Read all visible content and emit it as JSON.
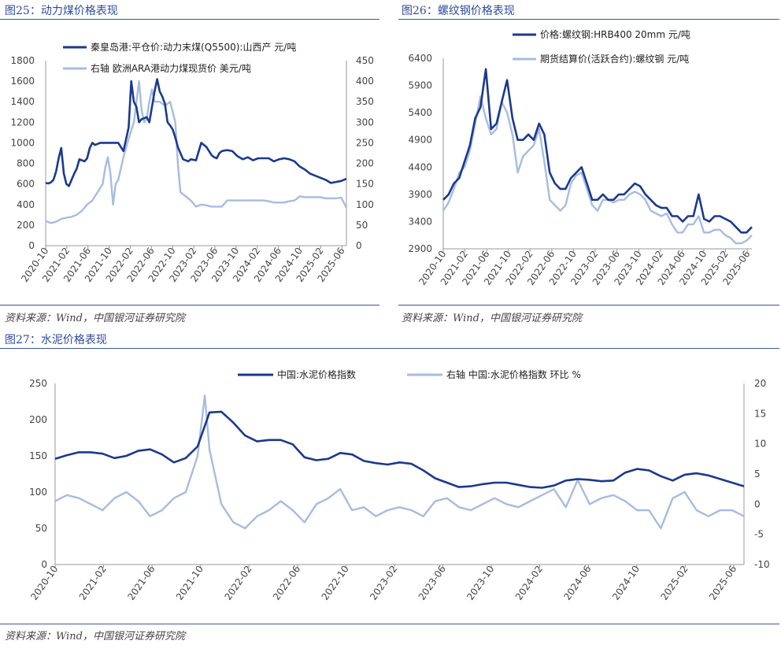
{
  "figures": [
    {
      "id": "fig25",
      "title": "图25：动力煤价格表现",
      "source": "资料来源：Wind，中国银河证券研究院"
    },
    {
      "id": "fig26",
      "title": "图26：螺纹钢价格表现",
      "source": "资料来源：Wind，中国银河证券研究院"
    },
    {
      "id": "fig27",
      "title": "图27：水泥价格表现",
      "source": "资料来源：Wind，中国银河证券研究院"
    }
  ],
  "colors": {
    "dark": "#1b3a8c",
    "light": "#a7bce0",
    "accent": "#2e4a9e"
  },
  "chart_data": [
    {
      "type": "line",
      "title": "图25：动力煤价格表现",
      "x_ticks": [
        "2020-10",
        "2021-02",
        "2021-06",
        "2021-10",
        "2022-02",
        "2022-06",
        "2022-10",
        "2023-02",
        "2023-06",
        "2023-10",
        "2024-02",
        "2024-06",
        "2024-10",
        "2025-02",
        "2025-06"
      ],
      "xlim": [
        0,
        58
      ],
      "ylim_left": [
        0,
        1800
      ],
      "y_ticks_left": [
        "0",
        "200",
        "400",
        "600",
        "800",
        "1000",
        "1200",
        "1400",
        "1600",
        "1800"
      ],
      "ylim_right": [
        0,
        450
      ],
      "y_ticks_right": [
        "0",
        "50",
        "100",
        "150",
        "200",
        "250",
        "300",
        "350",
        "400",
        "450"
      ],
      "legend_position": "top",
      "series": [
        {
          "name": "秦皇岛港:平仓价:动力末煤(Q5500):山西产 元/吨",
          "axis": "left",
          "color": "dark",
          "x": [
            0,
            0.5,
            1,
            1.5,
            2,
            2.5,
            3,
            3.5,
            4,
            4.5,
            5,
            5.5,
            6,
            6.5,
            7,
            7.5,
            8,
            8.5,
            9,
            9.5,
            10,
            10.5,
            11,
            11.5,
            12,
            13,
            14,
            15,
            16,
            16.5,
            17,
            17.5,
            18,
            18.5,
            19,
            19.5,
            20,
            20.5,
            21,
            21.5,
            22,
            22.5,
            23,
            23.5,
            24,
            24.5,
            25,
            25.5,
            26,
            26.5,
            27,
            27.5,
            28,
            29,
            30,
            31,
            32,
            32.5,
            33,
            33.5,
            34,
            35,
            36,
            37,
            38,
            39,
            40,
            41,
            42,
            43,
            44,
            45,
            46,
            47,
            48,
            49,
            50,
            51,
            52,
            53,
            54,
            55,
            56,
            57,
            58
          ],
          "values": [
            610,
            605,
            615,
            640,
            720,
            850,
            950,
            700,
            600,
            580,
            640,
            700,
            750,
            840,
            830,
            820,
            850,
            950,
            1000,
            980,
            990,
            1000,
            1000,
            1000,
            1000,
            1000,
            1000,
            920,
            1150,
            1600,
            1400,
            1350,
            1200,
            1230,
            1240,
            1250,
            1200,
            1350,
            1500,
            1620,
            1500,
            1450,
            1380,
            1200,
            1170,
            1130,
            1050,
            960,
            900,
            840,
            830,
            820,
            840,
            830,
            1000,
            960,
            880,
            860,
            850,
            900,
            920,
            930,
            920,
            870,
            840,
            860,
            830,
            850,
            850,
            850,
            820,
            840,
            850,
            840,
            820,
            770,
            740,
            700,
            680,
            660,
            640,
            610,
            620,
            630,
            650
          ],
          "note": "monthly approximation; peaks ~1600 (2022-03) and ~1620 (2022-09)"
        },
        {
          "name": "右轴 欧洲ARA港动力煤现货价 美元/吨",
          "axis": "right",
          "color": "light",
          "x": [
            0,
            1,
            2,
            3,
            4,
            5,
            6,
            7,
            8,
            9,
            10,
            11,
            11.5,
            12,
            12.5,
            13,
            13.5,
            14,
            15,
            16,
            17,
            17.5,
            18,
            18.5,
            19,
            19.5,
            20,
            20.5,
            21,
            22,
            23,
            24,
            25,
            25.5,
            26,
            27,
            28,
            29,
            30,
            31,
            32,
            33,
            34,
            35,
            36,
            37,
            38,
            39,
            40,
            41,
            42,
            43,
            44,
            45,
            46,
            47,
            48,
            49,
            50,
            51,
            52,
            53,
            54,
            55,
            56,
            57,
            58
          ],
          "values": [
            60,
            55,
            58,
            65,
            68,
            70,
            75,
            85,
            100,
            110,
            130,
            150,
            190,
            215,
            175,
            100,
            150,
            160,
            215,
            260,
            300,
            350,
            400,
            330,
            300,
            310,
            350,
            380,
            350,
            350,
            340,
            350,
            300,
            200,
            130,
            120,
            110,
            95,
            100,
            98,
            95,
            95,
            95,
            110,
            110,
            110,
            110,
            110,
            110,
            110,
            110,
            108,
            105,
            105,
            105,
            108,
            110,
            120,
            118,
            118,
            118,
            118,
            115,
            115,
            115,
            117,
            92
          ],
          "note": "monthly approximation; peak ~410 (2022-03)"
        }
      ]
    },
    {
      "type": "line",
      "title": "图26：螺纹钢价格表现",
      "x_ticks": [
        "2020-10",
        "2021-02",
        "2021-06",
        "2021-10",
        "2022-02",
        "2022-06",
        "2022-10",
        "2023-02",
        "2023-06",
        "2023-10",
        "2024-02",
        "2024-06",
        "2024-10",
        "2025-02",
        "2025-06"
      ],
      "xlim": [
        0,
        58
      ],
      "ylim": [
        2900,
        6400
      ],
      "y_ticks": [
        "2900",
        "3400",
        "3900",
        "4400",
        "4900",
        "5400",
        "5900",
        "6400"
      ],
      "legend_position": "top",
      "series": [
        {
          "name": "价格:螺纹钢:HRB400 20mm 元/吨",
          "color": "dark",
          "x": [
            0,
            1,
            2,
            3,
            4,
            5,
            6,
            7,
            8,
            9,
            10,
            11,
            12,
            13,
            14,
            15,
            16,
            17,
            18,
            19,
            20,
            21,
            22,
            23,
            24,
            25,
            26,
            27,
            28,
            29,
            30,
            31,
            32,
            33,
            34,
            35,
            36,
            37,
            38,
            39,
            40,
            41,
            42,
            43,
            44,
            45,
            46,
            47,
            48,
            49,
            50,
            51,
            52,
            53,
            54,
            55,
            56,
            57,
            58
          ],
          "values": [
            3800,
            3900,
            4100,
            4200,
            4500,
            4800,
            5300,
            5500,
            6200,
            5100,
            5200,
            5600,
            6000,
            5300,
            4900,
            4900,
            5000,
            4900,
            5200,
            5000,
            4300,
            4100,
            4000,
            4000,
            4200,
            4300,
            4400,
            4100,
            3800,
            3800,
            3900,
            3800,
            3800,
            3900,
            3900,
            4000,
            4100,
            4050,
            3900,
            3800,
            3700,
            3650,
            3650,
            3500,
            3500,
            3400,
            3500,
            3500,
            3900,
            3450,
            3400,
            3500,
            3500,
            3450,
            3400,
            3300,
            3200,
            3200,
            3300
          ],
          "note": "monthly approximation"
        },
        {
          "name": "期货结算价(活跃合约):螺纹钢 元/吨",
          "color": "light",
          "x": [
            0,
            1,
            2,
            3,
            4,
            5,
            6,
            7,
            8,
            9,
            10,
            11,
            12,
            13,
            14,
            15,
            16,
            17,
            18,
            19,
            20,
            21,
            22,
            23,
            24,
            25,
            26,
            27,
            28,
            29,
            30,
            31,
            32,
            33,
            34,
            35,
            36,
            37,
            38,
            39,
            40,
            41,
            42,
            43,
            44,
            45,
            46,
            47,
            48,
            49,
            50,
            51,
            52,
            53,
            54,
            55,
            56,
            57,
            58
          ],
          "values": [
            3600,
            3750,
            4000,
            4300,
            4400,
            4700,
            5200,
            5700,
            5300,
            5000,
            5100,
            5600,
            5400,
            5000,
            4300,
            4600,
            4700,
            4800,
            5100,
            4500,
            3800,
            3700,
            3600,
            3700,
            4100,
            4250,
            4300,
            4000,
            3700,
            3600,
            3800,
            3800,
            3750,
            3800,
            3800,
            3900,
            3950,
            3900,
            3800,
            3600,
            3550,
            3500,
            3550,
            3350,
            3200,
            3200,
            3350,
            3350,
            3500,
            3200,
            3200,
            3250,
            3250,
            3150,
            3100,
            3000,
            3000,
            3050,
            3150
          ],
          "note": "monthly approximation"
        }
      ]
    },
    {
      "type": "line",
      "title": "图27：水泥价格表现",
      "x_ticks": [
        "2020-10",
        "2021-02",
        "2021-06",
        "2021-10",
        "2022-02",
        "2022-06",
        "2022-10",
        "2023-02",
        "2023-06",
        "2023-10",
        "2024-02",
        "2024-06",
        "2024-10",
        "2025-02",
        "2025-06"
      ],
      "xlim": [
        0,
        58
      ],
      "ylim_left": [
        0,
        250
      ],
      "y_ticks_left": [
        "0",
        "50",
        "100",
        "150",
        "200",
        "250"
      ],
      "ylim_right": [
        -10,
        20
      ],
      "y_ticks_right": [
        "-10",
        "-5",
        "0",
        "5",
        "10",
        "15",
        "20"
      ],
      "legend_position": "top",
      "series": [
        {
          "name": "中国:水泥价格指数",
          "axis": "left",
          "color": "dark",
          "x": [
            0,
            1,
            2,
            3,
            4,
            5,
            6,
            7,
            8,
            9,
            10,
            11,
            12,
            13,
            14,
            15,
            16,
            17,
            18,
            19,
            20,
            21,
            22,
            23,
            24,
            25,
            26,
            27,
            28,
            29,
            30,
            31,
            32,
            33,
            34,
            35,
            36,
            37,
            38,
            39,
            40,
            41,
            42,
            43,
            44,
            45,
            46,
            47,
            48,
            49,
            50,
            51,
            52,
            53,
            54,
            55,
            56,
            57,
            58
          ],
          "values": [
            146,
            151,
            155,
            155,
            153,
            147,
            150,
            157,
            159,
            152,
            141,
            147,
            163,
            210,
            211,
            196,
            178,
            170,
            172,
            172,
            166,
            148,
            144,
            146,
            154,
            152,
            143,
            140,
            138,
            141,
            139,
            130,
            119,
            113,
            107,
            108,
            111,
            113,
            113,
            110,
            107,
            106,
            109,
            116,
            118,
            117,
            115,
            116,
            127,
            132,
            130,
            122,
            116,
            124,
            126,
            123,
            118,
            113,
            108
          ],
          "note": "monthly approximation; peak ~213 (2021-11)"
        },
        {
          "name": "右轴 中国:水泥价格指数 环比 %",
          "axis": "right",
          "color": "light",
          "x": [
            0,
            1,
            2,
            3,
            4,
            5,
            6,
            7,
            8,
            9,
            10,
            11,
            12,
            12.6,
            13,
            14,
            15,
            16,
            17,
            18,
            19,
            20,
            21,
            22,
            23,
            24,
            25,
            26,
            27,
            28,
            29,
            30,
            31,
            32,
            33,
            34,
            35,
            36,
            37,
            38,
            39,
            40,
            41,
            42,
            43,
            44,
            45,
            46,
            47,
            48,
            49,
            50,
            51,
            52,
            53,
            54,
            55,
            56,
            57,
            58
          ],
          "values": [
            0.5,
            1.5,
            1,
            0,
            -1,
            1,
            2,
            0.5,
            -2,
            -1,
            1,
            2,
            8,
            18,
            9,
            0,
            -3,
            -4,
            -2,
            -1,
            0.5,
            -1,
            -3,
            0,
            1,
            2.5,
            -1,
            -0.5,
            -2,
            -1,
            -0.5,
            -1,
            -2,
            0.5,
            1,
            -0.5,
            -1,
            0,
            1,
            0,
            -0.5,
            0.5,
            1.5,
            2.5,
            -0.5,
            4,
            0,
            1,
            1.5,
            0.5,
            -1,
            -1,
            -4,
            1,
            2,
            -1,
            -2,
            -1,
            -1,
            -2
          ],
          "note": "monthly approximation; spike ~18 (2021-09)"
        }
      ]
    }
  ]
}
